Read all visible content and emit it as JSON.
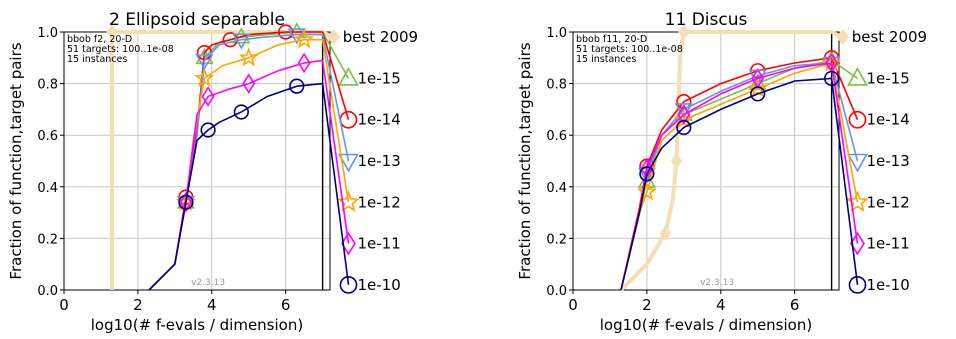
{
  "chart_data": [
    {
      "type": "line",
      "title": "2 Ellipsoid separable",
      "xlabel": "log10(# f-evals / dimension)",
      "ylabel": "Fraction of function,target pairs",
      "xlim": [
        0,
        7.2
      ],
      "ylim": [
        0,
        1
      ],
      "xticks": [
        "0",
        "2",
        "4",
        "6"
      ],
      "yticks": [
        "0.0",
        "0.2",
        "0.4",
        "0.6",
        "0.8",
        "1.0"
      ],
      "info": [
        "bbob f2, 20-D",
        "51 targets: 100..1e-08",
        "15 instances"
      ],
      "version": "v2.3.13",
      "grid": true,
      "legend_position": "right",
      "series": [
        {
          "name": "best 2009",
          "color": "#f5deb3",
          "marker": "diamond",
          "x": [
            1.3,
            1.3,
            1.3,
            7,
            7.3
          ],
          "y": [
            0,
            0.47,
            1.0,
            1.0,
            0.98
          ]
        },
        {
          "name": "1e-15",
          "color": "#7fbf3f",
          "marker": "triangle-up",
          "x": [
            2.3,
            3.0,
            3.3,
            3.6,
            3.8,
            4.2,
            4.8,
            5.5,
            6.3,
            7.0,
            7.7
          ],
          "y": [
            0,
            0.1,
            0.34,
            0.6,
            0.9,
            0.96,
            0.98,
            0.99,
            1.0,
            1.0,
            0.82
          ]
        },
        {
          "name": "1e-14",
          "color": "#ff0000",
          "marker": "circle",
          "x": [
            2.3,
            3.0,
            3.3,
            3.6,
            3.8,
            4.0,
            4.5,
            5.0,
            6.0,
            7.0,
            7.7
          ],
          "y": [
            0,
            0.1,
            0.36,
            0.62,
            0.92,
            0.95,
            0.97,
            0.99,
            1.0,
            1.0,
            0.66
          ]
        },
        {
          "name": "1e-13",
          "color": "#6495ed",
          "marker": "triangle-down",
          "x": [
            2.3,
            3.0,
            3.3,
            3.6,
            3.8,
            4.2,
            4.8,
            5.4,
            6.3,
            7.0,
            7.7
          ],
          "y": [
            0,
            0.1,
            0.34,
            0.6,
            0.89,
            0.95,
            0.97,
            0.98,
            0.99,
            0.99,
            0.5
          ]
        },
        {
          "name": "1e-12",
          "color": "#ffa500",
          "marker": "star",
          "x": [
            2.3,
            3.0,
            3.3,
            3.5,
            3.8,
            4.3,
            5.0,
            5.8,
            6.5,
            7.0,
            7.7
          ],
          "y": [
            0,
            0.1,
            0.34,
            0.58,
            0.82,
            0.87,
            0.9,
            0.95,
            0.97,
            0.97,
            0.34
          ]
        },
        {
          "name": "1e-11",
          "color": "#ff00ff",
          "marker": "diamond",
          "x": [
            2.3,
            3.0,
            3.3,
            3.6,
            3.9,
            4.5,
            5.0,
            5.8,
            6.5,
            7.0,
            7.7
          ],
          "y": [
            0,
            0.1,
            0.34,
            0.68,
            0.75,
            0.78,
            0.8,
            0.85,
            0.88,
            0.89,
            0.18
          ]
        },
        {
          "name": "1e-10",
          "color": "#000080",
          "marker": "circle",
          "x": [
            2.3,
            3.0,
            3.3,
            3.6,
            3.9,
            4.2,
            4.8,
            5.5,
            6.3,
            7.0,
            7.7
          ],
          "y": [
            0,
            0.1,
            0.34,
            0.58,
            0.62,
            0.65,
            0.69,
            0.75,
            0.79,
            0.8,
            0.02
          ]
        }
      ]
    },
    {
      "type": "line",
      "title": "11 Discus",
      "xlabel": "log10(# f-evals / dimension)",
      "ylabel": "Fraction of function,target pairs",
      "xlim": [
        0,
        7.2
      ],
      "ylim": [
        0,
        1
      ],
      "xticks": [
        "0",
        "2",
        "4",
        "6"
      ],
      "yticks": [
        "0.0",
        "0.2",
        "0.4",
        "0.6",
        "0.8",
        "1.0"
      ],
      "info": [
        "bbob f11, 20-D",
        "51 targets: 100..1e-08",
        "15 instances"
      ],
      "version": "v2.3.13",
      "grid": true,
      "legend_position": "right",
      "series": [
        {
          "name": "best 2009",
          "color": "#f5deb3",
          "marker": "diamond",
          "x": [
            1.3,
            2.0,
            2.5,
            2.7,
            2.8,
            2.9,
            3.0,
            7.0,
            7.3
          ],
          "y": [
            0,
            0.1,
            0.22,
            0.35,
            0.5,
            0.9,
            1.0,
            1.0,
            0.98
          ]
        },
        {
          "name": "1e-15",
          "color": "#7fbf3f",
          "marker": "triangle-up",
          "x": [
            1.3,
            1.8,
            2.0,
            2.4,
            3.0,
            4.0,
            5.0,
            6.0,
            7.0,
            7.7
          ],
          "y": [
            0,
            0.3,
            0.42,
            0.6,
            0.68,
            0.74,
            0.8,
            0.86,
            0.89,
            0.82
          ]
        },
        {
          "name": "1e-14",
          "color": "#ff0000",
          "marker": "circle",
          "x": [
            1.3,
            1.8,
            2.0,
            2.4,
            3.0,
            4.0,
            5.0,
            6.0,
            7.0,
            7.7
          ],
          "y": [
            0,
            0.32,
            0.48,
            0.62,
            0.73,
            0.8,
            0.85,
            0.88,
            0.9,
            0.66
          ]
        },
        {
          "name": "1e-13",
          "color": "#6495ed",
          "marker": "triangle-down",
          "x": [
            1.3,
            1.8,
            2.0,
            2.4,
            3.0,
            4.0,
            5.0,
            6.0,
            7.0,
            7.7
          ],
          "y": [
            0,
            0.3,
            0.45,
            0.6,
            0.7,
            0.77,
            0.83,
            0.87,
            0.88,
            0.5
          ]
        },
        {
          "name": "1e-12",
          "color": "#ffa500",
          "marker": "star",
          "x": [
            1.3,
            1.8,
            2.0,
            2.4,
            3.0,
            4.0,
            5.0,
            6.0,
            7.0,
            7.7
          ],
          "y": [
            0,
            0.3,
            0.38,
            0.58,
            0.66,
            0.72,
            0.78,
            0.84,
            0.88,
            0.34
          ]
        },
        {
          "name": "1e-11",
          "color": "#ff00ff",
          "marker": "diamond",
          "x": [
            1.3,
            1.8,
            2.0,
            2.4,
            3.0,
            4.0,
            5.0,
            6.0,
            7.0,
            7.7
          ],
          "y": [
            0,
            0.3,
            0.47,
            0.6,
            0.68,
            0.76,
            0.82,
            0.86,
            0.88,
            0.18
          ]
        },
        {
          "name": "1e-10",
          "color": "#000080",
          "marker": "circle",
          "x": [
            1.3,
            1.8,
            2.0,
            2.4,
            3.0,
            4.0,
            5.0,
            6.0,
            7.0,
            7.7
          ],
          "y": [
            0,
            0.3,
            0.45,
            0.55,
            0.63,
            0.7,
            0.76,
            0.81,
            0.82,
            0.02
          ]
        }
      ]
    }
  ]
}
